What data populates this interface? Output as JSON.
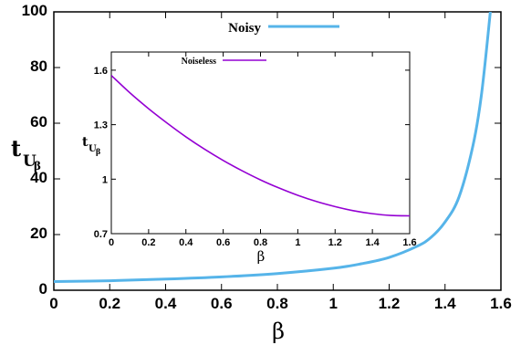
{
  "chart_data": [
    {
      "type": "line",
      "xlabel": "β",
      "ylabel": "t",
      "ylabel_sub": "U",
      "ylabel_subsub": "β",
      "xlim": [
        0,
        1.6
      ],
      "ylim": [
        0,
        100
      ],
      "xticks": [
        "0",
        "0.2",
        "0.4",
        "0.6",
        "0.8",
        "1",
        "1.2",
        "1.4",
        "1.6"
      ],
      "yticks": [
        "0",
        "20",
        "40",
        "60",
        "80",
        "100"
      ],
      "legend": "top-center",
      "series": [
        {
          "name": "Noisy",
          "color": "#56b4e9",
          "x": [
            0,
            0.2,
            0.4,
            0.6,
            0.8,
            1.0,
            1.1,
            1.2,
            1.3,
            1.35,
            1.4,
            1.45,
            1.5,
            1.53,
            1.56,
            1.57
          ],
          "y": [
            3.1,
            3.4,
            4.0,
            4.8,
            6.0,
            7.9,
            9.5,
            11.8,
            15.8,
            19.0,
            24.5,
            33.5,
            52.0,
            70.0,
            98.0,
            110.0
          ]
        }
      ]
    },
    {
      "type": "line",
      "xlabel": "β",
      "ylabel": "t",
      "ylabel_sub": "U",
      "ylabel_subsub": "β",
      "xlim": [
        0,
        1.6
      ],
      "ylim": [
        0.7,
        1.7
      ],
      "xticks": [
        "0",
        "0.2",
        "0.4",
        "0.6",
        "0.8",
        "1",
        "1.2",
        "1.4",
        "1.6"
      ],
      "yticks": [
        "0.7",
        "1",
        "1.3",
        "1.6"
      ],
      "legend": "top-left",
      "series": [
        {
          "name": "Noiseless",
          "color": "#9400d3",
          "x": [
            0,
            0.1,
            0.2,
            0.3,
            0.4,
            0.5,
            0.6,
            0.7,
            0.8,
            0.9,
            1.0,
            1.1,
            1.2,
            1.3,
            1.4,
            1.5,
            1.6
          ],
          "y": [
            1.571,
            1.475,
            1.388,
            1.308,
            1.233,
            1.165,
            1.103,
            1.047,
            0.996,
            0.951,
            0.911,
            0.877,
            0.849,
            0.826,
            0.81,
            0.8,
            0.798
          ]
        }
      ]
    }
  ]
}
